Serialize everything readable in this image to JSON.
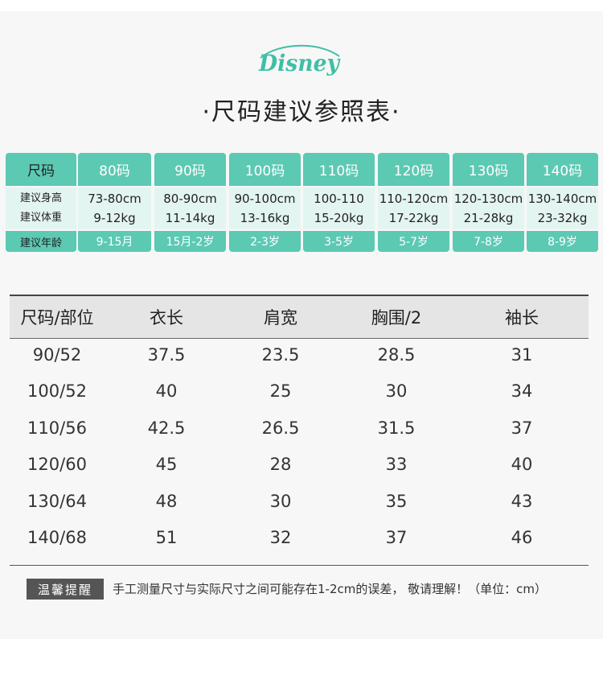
{
  "brand": {
    "logo_text": "DISNEY",
    "color": "#3fbfa6"
  },
  "title": "·尺码建议参照表·",
  "recommend": {
    "row_labels": {
      "size": "尺码",
      "height": "建议身高",
      "weight": "建议体重",
      "age": "建议年龄"
    },
    "columns": [
      {
        "size": "80码",
        "height": "73-80cm",
        "weight": "9-12kg",
        "age": "9-15月"
      },
      {
        "size": "90码",
        "height": "80-90cm",
        "weight": "11-14kg",
        "age": "15月-2岁"
      },
      {
        "size": "100码",
        "height": "90-100cm",
        "weight": "13-16kg",
        "age": "2-3岁"
      },
      {
        "size": "110码",
        "height": "100-110",
        "weight": "15-20kg",
        "age": "3-5岁"
      },
      {
        "size": "120码",
        "height": "110-120cm",
        "weight": "17-22kg",
        "age": "5-7岁"
      },
      {
        "size": "130码",
        "height": "120-130cm",
        "weight": "21-28kg",
        "age": "7-8岁"
      },
      {
        "size": "140码",
        "height": "130-140cm",
        "weight": "23-32kg",
        "age": "8-9岁"
      }
    ],
    "colors": {
      "accent": "#5cc9b3",
      "light": "#e3f5f0"
    }
  },
  "measure": {
    "headers": [
      "尺码/部位",
      "衣长",
      "肩宽",
      "胸围/2",
      "袖长"
    ],
    "rows": [
      [
        "90/52",
        "37.5",
        "23.5",
        "28.5",
        "31"
      ],
      [
        "100/52",
        "40",
        "25",
        "30",
        "34"
      ],
      [
        "110/56",
        "42.5",
        "26.5",
        "31.5",
        "37"
      ],
      [
        "120/60",
        "45",
        "28",
        "33",
        "40"
      ],
      [
        "130/64",
        "48",
        "30",
        "35",
        "43"
      ],
      [
        "140/68",
        "51",
        "32",
        "37",
        "46"
      ]
    ]
  },
  "note": {
    "badge": "温馨提醒",
    "text": "手工测量尺寸与实际尺寸之间可能存在1-2cm的误差， 敬请理解！（单位：cm）"
  }
}
